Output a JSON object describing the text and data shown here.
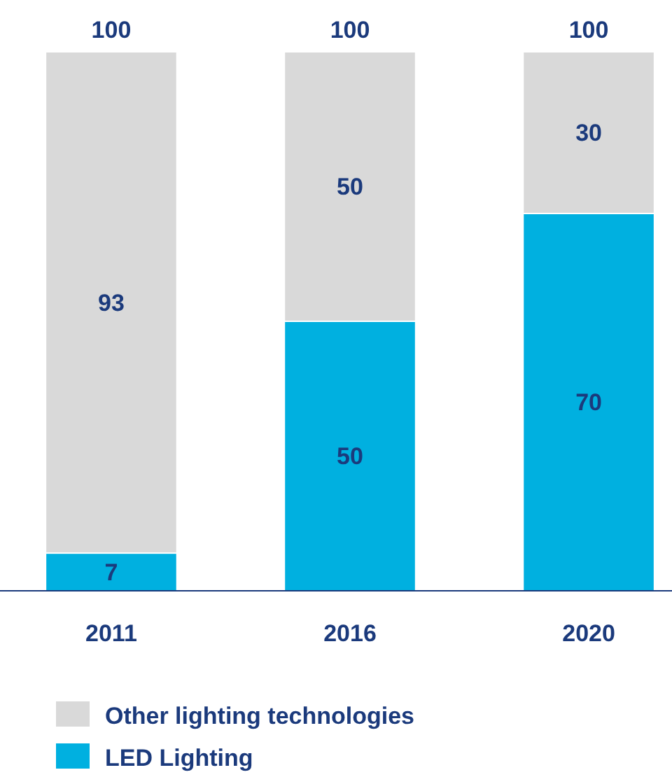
{
  "chart_data": {
    "type": "bar",
    "stacked": true,
    "categories": [
      "2011",
      "2016",
      "2020"
    ],
    "series": [
      {
        "name": "LED Lighting",
        "color": "#00b0e0",
        "values": [
          7,
          50,
          70
        ]
      },
      {
        "name": "Other lighting technologies",
        "color": "#d9d9d9",
        "values": [
          93,
          50,
          30
        ]
      }
    ],
    "data_labels": true,
    "totals": [
      "100",
      "100",
      "100"
    ],
    "legend": "bottom"
  }
}
